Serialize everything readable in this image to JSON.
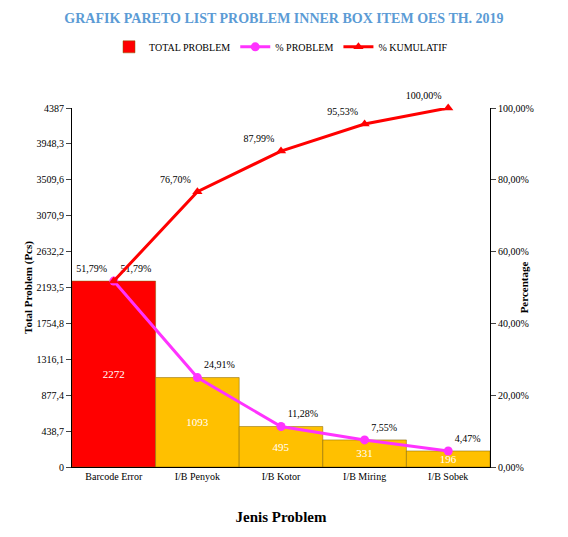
{
  "chart_data": {
    "type": "bar",
    "title": "GRAFIK PARETO LIST PROBLEM INNER BOX ITEM OES TH. 2019",
    "x_label": "Jenis Problem",
    "y_label": "Total Problem (Pcs)",
    "y2_label": "Percentage",
    "categories": [
      "Barcode Error",
      "I/B Penyok",
      "I/B Kotor",
      "I/B Miring",
      "I/B Sobek"
    ],
    "series": [
      {
        "name": "TOTAL PROBLEM",
        "type": "bar",
        "axis": "y",
        "colors": [
          "#ff0000",
          "#ffc000",
          "#ffc000",
          "#ffc000",
          "#ffc000"
        ],
        "values": [
          2272,
          1093,
          495,
          331,
          196
        ]
      },
      {
        "name": "% PROBLEM",
        "type": "line",
        "axis": "y2",
        "color": "#ff33ff",
        "marker": "circle",
        "values": [
          51.79,
          24.91,
          11.28,
          7.55,
          4.47
        ],
        "value_labels": [
          "51,79%",
          "24,91%",
          "11,28%",
          "7,55%",
          "4,47%"
        ]
      },
      {
        "name": "% KUMULATIF",
        "type": "line",
        "axis": "y2",
        "color": "#ff0000",
        "marker": "triangle-up",
        "values": [
          51.79,
          76.7,
          87.99,
          95.53,
          100.0
        ],
        "value_labels": [
          "51,79%",
          "76,70%",
          "87,99%",
          "95,53%",
          "100,00%"
        ]
      }
    ],
    "ylim": [
      0,
      4387
    ],
    "yticks": [
      0,
      {
        "value": 438.7,
        "label": "438,7"
      },
      {
        "value": 877.4,
        "label": "877,4"
      },
      {
        "value": 1316.1,
        "label": "1316,1"
      },
      {
        "value": 1754.8,
        "label": "1754,8"
      },
      {
        "value": 2193.5,
        "label": "2193,5"
      },
      {
        "value": 2632.2,
        "label": "2632,2"
      },
      {
        "value": 3070.9,
        "label": "3070,9"
      },
      {
        "value": 3509.6,
        "label": "3509,6"
      },
      {
        "value": 3948.3,
        "label": "3948,3"
      },
      4387
    ],
    "y2lim": [
      0,
      100
    ],
    "y2ticks": [
      {
        "value": 0,
        "label": "0,00%"
      },
      {
        "value": 20,
        "label": "20,00%"
      },
      {
        "value": 40,
        "label": "40,00%"
      },
      {
        "value": 60,
        "label": "60,00%"
      },
      {
        "value": 80,
        "label": "80,00%"
      },
      {
        "value": 100,
        "label": "100,00%"
      }
    ],
    "grid": false,
    "legend": "top",
    "data_labels": true
  }
}
